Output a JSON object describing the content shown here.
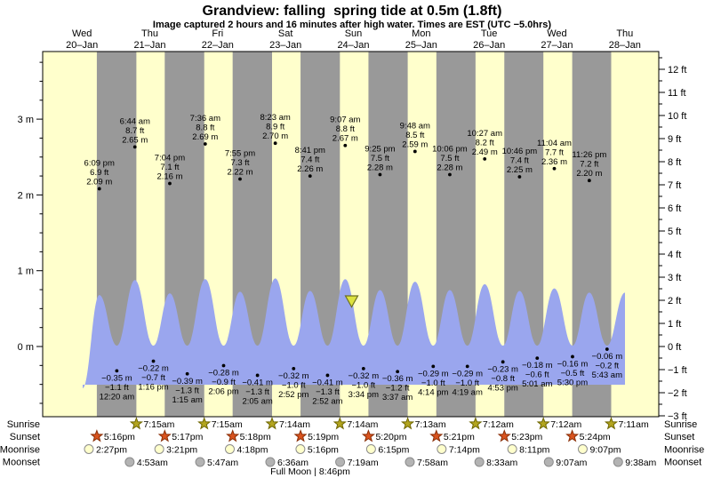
{
  "title": "Grandview: falling  spring tide at 0.5m (1.8ft)",
  "subtitle": "Image captured 2 hours and 16 minutes after high water. Times are EST (UTC −5.0hrs)",
  "rows": {
    "sunrise": "Sunrise",
    "sunset": "Sunset",
    "moonrise": "Moonrise",
    "moonset": "Moonset"
  },
  "colors": {
    "background": "#FFFFFF",
    "day_band": "#FFFFCC",
    "night_band": "#999999",
    "water": "#9AA6EE",
    "day_label_red": "#FB4040",
    "text": "#000000",
    "axis": "#000000",
    "sunrise_star": "#B3A51F",
    "sunrise_star_stroke": "#6E6600",
    "sunset_star": "#D9531E",
    "sunset_star_stroke": "#8A2F08",
    "moonrise_circle": "#FFFFCC",
    "moonset_circle": "#B3B3B3",
    "moon_circle_stroke": "#8C8C8C",
    "marker": "#DCE23F",
    "marker_stroke": "#6E7020"
  },
  "chart_data": {
    "type": "area",
    "title": "Grandview: falling  spring tide at 0.5m (1.8ft)",
    "x_axis": {
      "days": [
        {
          "weekday": "Wed",
          "date": "20–Jan"
        },
        {
          "weekday": "Thu",
          "date": "21–Jan"
        },
        {
          "weekday": "Fri",
          "date": "22–Jan"
        },
        {
          "weekday": "Sat",
          "date": "23–Jan"
        },
        {
          "weekday": "Sun",
          "date": "24–Jan"
        },
        {
          "weekday": "Mon",
          "date": "25–Jan"
        },
        {
          "weekday": "Tue",
          "date": "26–Jan"
        },
        {
          "weekday": "Wed",
          "date": "27–Jan"
        },
        {
          "weekday": "Thu",
          "date": "28–Jan"
        }
      ]
    },
    "y_axis": {
      "left_unit": "m",
      "left_tick_values": [
        3,
        2,
        1,
        0
      ],
      "left_tick_labels": [
        "3 m",
        "2 m",
        "1 m",
        "0 m"
      ],
      "right_unit": "ft",
      "right_tick_values": [
        12,
        11,
        10,
        9,
        8,
        7,
        6,
        5,
        4,
        3,
        2,
        1,
        0,
        -1,
        -2,
        -3
      ],
      "right_tick_labels": [
        "12 ft",
        "11 ft",
        "10 ft",
        "9 ft",
        "8 ft",
        "7 ft",
        "6 ft",
        "5 ft",
        "4 ft",
        "3 ft",
        "2 ft",
        "1 ft",
        "0 ft",
        "−1 ft",
        "−2 ft",
        "−3 ft"
      ],
      "right_range": [
        -3,
        12
      ]
    },
    "tide_events": [
      {
        "type": "high",
        "day": 0,
        "time": "6:09 pm",
        "ft": 6.9,
        "m": 2.09
      },
      {
        "type": "low",
        "day": 1,
        "time": "12:20 am",
        "ft": -1.1,
        "m": -0.35
      },
      {
        "type": "high",
        "day": 1,
        "time": "6:44 am",
        "ft": 8.7,
        "m": 2.65
      },
      {
        "type": "low",
        "day": 1,
        "time": "1:16 pm",
        "ft": -0.7,
        "m": -0.22
      },
      {
        "type": "high",
        "day": 1,
        "time": "7:04 pm",
        "ft": 7.1,
        "m": 2.16
      },
      {
        "type": "low",
        "day": 2,
        "time": "1:15 am",
        "ft": -1.3,
        "m": -0.39
      },
      {
        "type": "high",
        "day": 2,
        "time": "7:36 am",
        "ft": 8.8,
        "m": 2.69
      },
      {
        "type": "low",
        "day": 2,
        "time": "2:06 pm",
        "ft": -0.9,
        "m": -0.28
      },
      {
        "type": "high",
        "day": 2,
        "time": "7:55 pm",
        "ft": 7.3,
        "m": 2.22
      },
      {
        "type": "low",
        "day": 3,
        "time": "2:05 am",
        "ft": -1.3,
        "m": -0.41
      },
      {
        "type": "high",
        "day": 3,
        "time": "8:23 am",
        "ft": 8.9,
        "m": 2.7
      },
      {
        "type": "low",
        "day": 3,
        "time": "2:52 pm",
        "ft": -1.0,
        "m": -0.32
      },
      {
        "type": "high",
        "day": 3,
        "time": "8:41 pm",
        "ft": 7.4,
        "m": 2.26
      },
      {
        "type": "low",
        "day": 4,
        "time": "2:52 am",
        "ft": -1.3,
        "m": -0.41
      },
      {
        "type": "high",
        "day": 4,
        "time": "9:07 am",
        "ft": 8.8,
        "m": 2.67
      },
      {
        "type": "low",
        "day": 4,
        "time": "3:34 pm",
        "ft": -1.0,
        "m": -0.32
      },
      {
        "type": "high",
        "day": 4,
        "time": "9:25 pm",
        "ft": 7.5,
        "m": 2.28
      },
      {
        "type": "low",
        "day": 5,
        "time": "3:37 am",
        "ft": -1.2,
        "m": -0.36
      },
      {
        "type": "high",
        "day": 5,
        "time": "9:48 am",
        "ft": 8.5,
        "m": 2.59
      },
      {
        "type": "low",
        "day": 5,
        "time": "4:14 pm",
        "ft": -1.0,
        "m": -0.29
      },
      {
        "type": "high",
        "day": 5,
        "time": "10:06 pm",
        "ft": 7.5,
        "m": 2.28
      },
      {
        "type": "low",
        "day": 6,
        "time": "4:19 am",
        "ft": -1.0,
        "m": -0.29
      },
      {
        "type": "high",
        "day": 6,
        "time": "10:27 am",
        "ft": 8.2,
        "m": 2.49
      },
      {
        "type": "low",
        "day": 6,
        "time": "4:53 pm",
        "ft": -0.8,
        "m": -0.23
      },
      {
        "type": "high",
        "day": 6,
        "time": "10:46 pm",
        "ft": 7.4,
        "m": 2.25
      },
      {
        "type": "low",
        "day": 7,
        "time": "5:01 am",
        "ft": -0.6,
        "m": -0.18
      },
      {
        "type": "high",
        "day": 7,
        "time": "11:04 am",
        "ft": 7.7,
        "m": 2.36
      },
      {
        "type": "low",
        "day": 7,
        "time": "5:30 pm",
        "ft": -0.5,
        "m": -0.16
      },
      {
        "type": "high",
        "day": 7,
        "time": "11:26 pm",
        "ft": 7.2,
        "m": 2.2
      },
      {
        "type": "low",
        "day": 8,
        "time": "5:43 am",
        "ft": -0.2,
        "m": -0.06
      }
    ],
    "sun_moon": {
      "sunrise": [
        {
          "day": 1,
          "time": "7:15am"
        },
        {
          "day": 2,
          "time": "7:15am"
        },
        {
          "day": 3,
          "time": "7:14am"
        },
        {
          "day": 4,
          "time": "7:14am"
        },
        {
          "day": 5,
          "time": "7:13am"
        },
        {
          "day": 6,
          "time": "7:12am"
        },
        {
          "day": 7,
          "time": "7:12am"
        },
        {
          "day": 8,
          "time": "7:11am"
        }
      ],
      "sunset": [
        {
          "day": 0,
          "time": "5:16pm"
        },
        {
          "day": 1,
          "time": "5:17pm"
        },
        {
          "day": 2,
          "time": "5:18pm"
        },
        {
          "day": 3,
          "time": "5:19pm"
        },
        {
          "day": 4,
          "time": "5:20pm"
        },
        {
          "day": 5,
          "time": "5:21pm"
        },
        {
          "day": 6,
          "time": "5:23pm"
        },
        {
          "day": 7,
          "time": "5:24pm"
        }
      ],
      "moonrise": [
        {
          "day": 0,
          "time": "2:27pm"
        },
        {
          "day": 1,
          "time": "3:21pm"
        },
        {
          "day": 2,
          "time": "4:18pm"
        },
        {
          "day": 3,
          "time": "5:16pm"
        },
        {
          "day": 4,
          "time": "6:15pm"
        },
        {
          "day": 5,
          "time": "7:14pm"
        },
        {
          "day": 6,
          "time": "8:11pm"
        },
        {
          "day": 7,
          "time": "9:07pm"
        }
      ],
      "moonset": [
        {
          "day": 1,
          "time": "4:53am"
        },
        {
          "day": 2,
          "time": "5:47am"
        },
        {
          "day": 3,
          "time": "6:36am"
        },
        {
          "day": 4,
          "time": "7:19am"
        },
        {
          "day": 5,
          "time": "7:58am"
        },
        {
          "day": 6,
          "time": "8:33am"
        },
        {
          "day": 7,
          "time": "9:07am"
        },
        {
          "day": 8,
          "time": "9:38am"
        }
      ]
    },
    "full_moon": {
      "text": "Full Moon | 8:46pm",
      "day": 3,
      "time": "8:46pm"
    },
    "current_marker": {
      "description": "falling-tide position triangle",
      "day": 4,
      "time": "11:23 am"
    }
  }
}
